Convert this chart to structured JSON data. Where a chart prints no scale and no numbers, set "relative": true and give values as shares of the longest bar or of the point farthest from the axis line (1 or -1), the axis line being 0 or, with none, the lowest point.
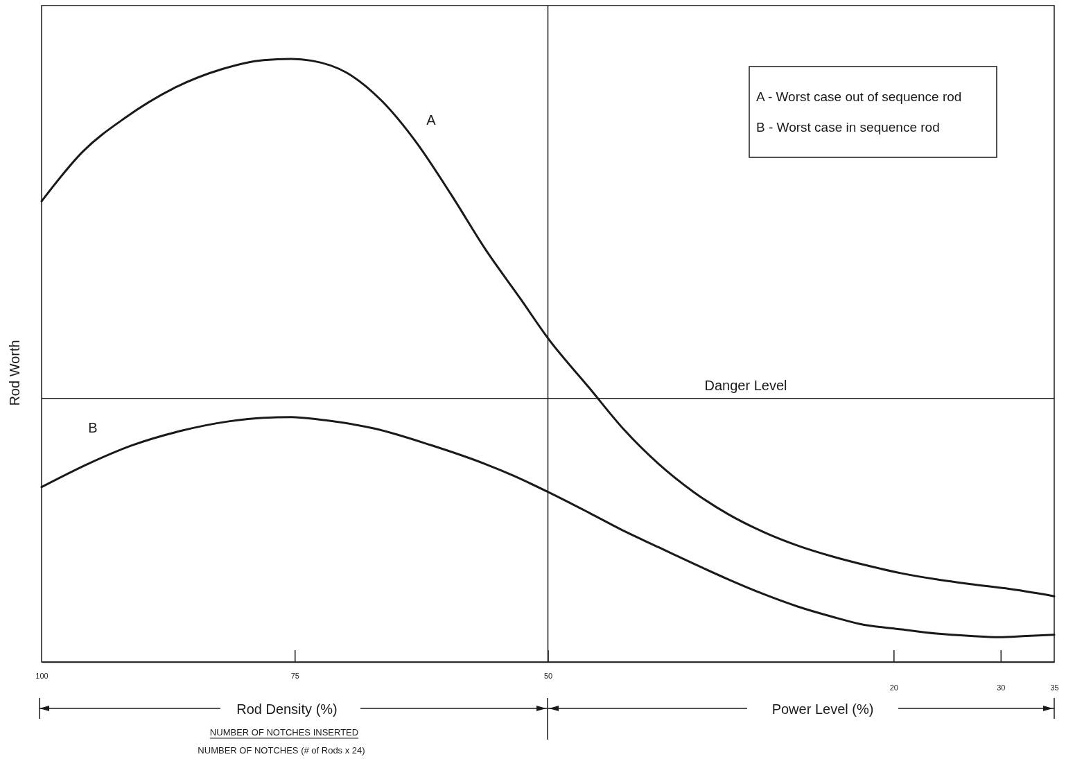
{
  "chart_data": {
    "type": "line",
    "relative": true,
    "ylabel": "Rod Worth",
    "xlabel": "Rod Density (%)",
    "xlim": [
      100,
      0
    ],
    "xticks": [
      100,
      75,
      50
    ],
    "x2lim": [
      -59.6,
      35
    ],
    "x2ticks": [
      20,
      30,
      35
    ],
    "series": [
      {
        "name": "A",
        "color": "#1a1a1a",
        "x": [
          100,
          95.89,
          91.78,
          86.99,
          82.19,
          78.08,
          75.34,
          73.29,
          69.86,
          66.44,
          63.01,
          59.59,
          56.16,
          52.74,
          50,
          45.89,
          42.47,
          39.04,
          35.62,
          32.19,
          28.77,
          25.34,
          21.92,
          18.49,
          15.07,
          11.64,
          8.22,
          4.79,
          0
        ],
        "values": [
          0.764,
          0.847,
          0.902,
          0.951,
          0.983,
          0.998,
          1,
          0.997,
          0.977,
          0.931,
          0.862,
          0.776,
          0.684,
          0.603,
          0.537,
          0.454,
          0.385,
          0.328,
          0.282,
          0.245,
          0.216,
          0.193,
          0.175,
          0.16,
          0.147,
          0.137,
          0.129,
          0.122,
          0.109
        ]
      },
      {
        "name": "B",
        "color": "#1a1a1a",
        "x": [
          100,
          95.21,
          91.1,
          86.3,
          81.51,
          78.08,
          75.34,
          72.6,
          67.12,
          61.64,
          56.16,
          53.42,
          50,
          45.89,
          42.47,
          39.04,
          35.62,
          32.19,
          28.77,
          25.34,
          21.92,
          19.18,
          15.07,
          11.64,
          8.22,
          5.48,
          2.74,
          0
        ],
        "values": [
          0.29,
          0.33,
          0.359,
          0.383,
          0.399,
          0.405,
          0.406,
          0.402,
          0.387,
          0.36,
          0.328,
          0.309,
          0.282,
          0.247,
          0.217,
          0.19,
          0.163,
          0.137,
          0.113,
          0.092,
          0.075,
          0.063,
          0.054,
          0.047,
          0.043,
          0.041,
          0.043,
          0.045
        ]
      }
    ],
    "ref_lines": [
      {
        "axis": "y",
        "value": 0.437,
        "label": "Danger Level"
      },
      {
        "axis": "x",
        "value": 50
      }
    ],
    "annotations": [
      "A - Worst case out of sequence rod",
      "B - Worst case in sequence rod",
      "Power Level (%)",
      "NUMBER OF NOTCHES INSERTED",
      "NUMBER OF NOTCHES (# of Rods x 24)"
    ],
    "legend": false,
    "grid": false,
    "line_style": "solid",
    "marker": "none"
  }
}
